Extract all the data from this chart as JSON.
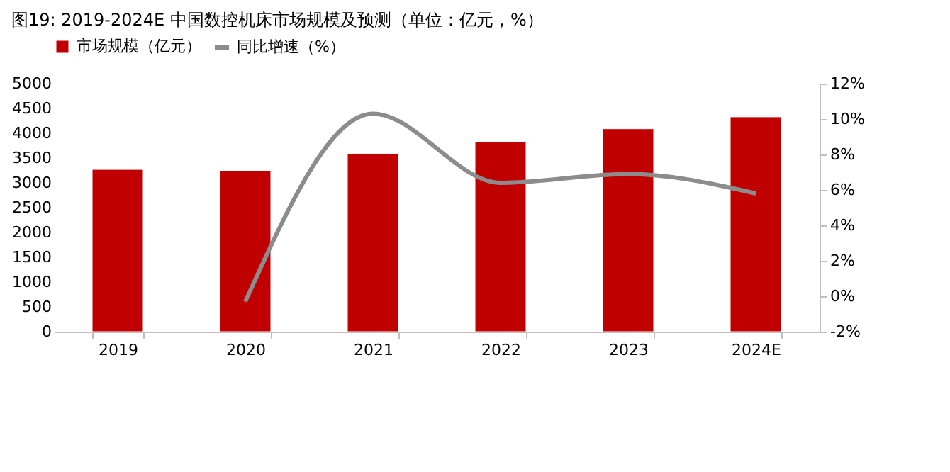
{
  "chart_data": {
    "type": "bar",
    "title": "图19:  2019-2024E 中国数控机床市场规模及预测（单位：亿元，%）",
    "categories": [
      "2019",
      "2020",
      "2021",
      "2022",
      "2023",
      "2024E"
    ],
    "series": [
      {
        "name": "市场规模（亿元）",
        "color": "#c00000",
        "values": [
          3270,
          3250,
          3590,
          3830,
          4090,
          4330
        ]
      },
      {
        "name": "同比增速（%）",
        "color": "#8c8c8c",
        "type": "line",
        "axis": "y2",
        "values": [
          null,
          -0.3,
          10.3,
          6.4,
          6.9,
          5.8
        ]
      }
    ],
    "ylim": [
      0,
      5000
    ],
    "yticks": [
      0,
      500,
      1000,
      1500,
      2000,
      2500,
      3000,
      3500,
      4000,
      4500,
      5000
    ],
    "y2lim": [
      -2,
      12
    ],
    "y2ticks": [
      {
        "value": -2,
        "label": "-2%"
      },
      {
        "value": 0,
        "label": "0%"
      },
      {
        "value": 2,
        "label": "2%"
      },
      {
        "value": 4,
        "label": "4%"
      },
      {
        "value": 6,
        "label": "6%"
      },
      {
        "value": 8,
        "label": "8%"
      },
      {
        "value": 10,
        "label": "10%"
      },
      {
        "value": 12,
        "label": "12%"
      }
    ],
    "grid": false,
    "legend": "top",
    "marker": "none",
    "line_style": "solid"
  }
}
